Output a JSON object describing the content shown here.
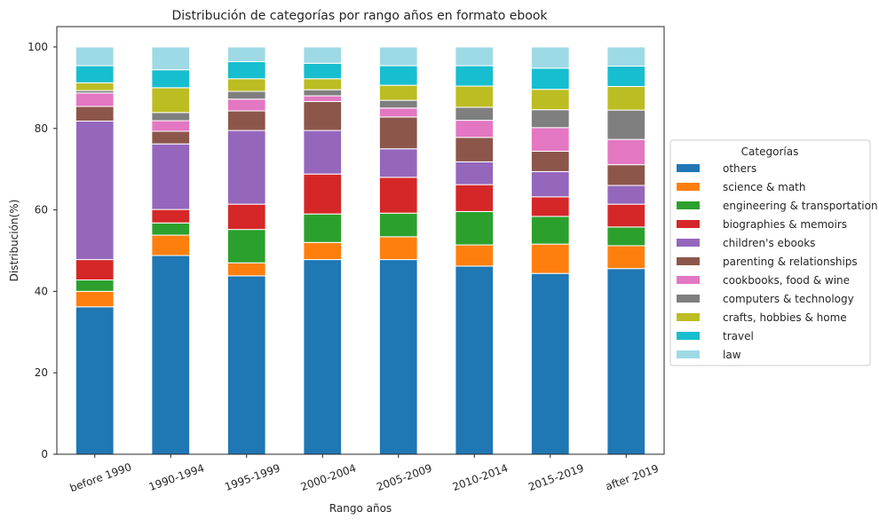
{
  "chart_data": {
    "type": "bar",
    "stacked": true,
    "title": "Distribución de categorías por rango años en formato ebook",
    "xlabel": "Rango años",
    "ylabel": "Distribución(%)",
    "ylim": [
      0,
      105
    ],
    "yticks": [
      0,
      20,
      40,
      60,
      80,
      100
    ],
    "grid": false,
    "legend_title": "Categorías",
    "legend_position": "center-right outside",
    "categories": [
      "before 1990",
      "1990-1994",
      "1995-1999",
      "2000-2004",
      "2005-2009",
      "2010-2014",
      "2015-2019",
      "after 2019"
    ],
    "series": [
      {
        "name": "others",
        "color": "#1f77b4",
        "values": [
          36.2,
          48.8,
          43.8,
          47.8,
          47.8,
          46.2,
          44.4,
          45.6
        ]
      },
      {
        "name": "science & math",
        "color": "#ff7f0e",
        "values": [
          3.8,
          5.0,
          3.2,
          4.2,
          5.6,
          5.2,
          7.2,
          5.6
        ]
      },
      {
        "name": "engineering & transportation",
        "color": "#2ca02c",
        "values": [
          2.8,
          3.0,
          8.2,
          7.0,
          5.8,
          8.2,
          6.8,
          4.6
        ]
      },
      {
        "name": "biographies & memoirs",
        "color": "#d62728",
        "values": [
          5.0,
          3.3,
          6.2,
          9.8,
          8.8,
          6.6,
          4.8,
          5.6
        ]
      },
      {
        "name": "children's ebooks",
        "color": "#9467bd",
        "values": [
          34.0,
          16.1,
          18.1,
          10.7,
          7.0,
          5.6,
          6.2,
          4.6
        ]
      },
      {
        "name": "parenting & relationships",
        "color": "#8c564b",
        "values": [
          3.6,
          3.1,
          4.8,
          7.1,
          7.8,
          6.0,
          5.0,
          5.1
        ]
      },
      {
        "name": "cookbooks, food & wine",
        "color": "#e377c2",
        "values": [
          3.3,
          2.6,
          2.9,
          1.4,
          2.2,
          4.2,
          5.8,
          6.2
        ]
      },
      {
        "name": "computers & technology",
        "color": "#7f7f7f",
        "values": [
          0.6,
          2.0,
          1.9,
          1.5,
          1.9,
          3.2,
          4.4,
          7.2
        ]
      },
      {
        "name": "crafts, hobbies & home",
        "color": "#bcbd22",
        "values": [
          1.9,
          6.1,
          3.1,
          2.7,
          3.7,
          5.2,
          5.0,
          5.8
        ]
      },
      {
        "name": "travel",
        "color": "#17becf",
        "values": [
          4.2,
          4.4,
          4.2,
          3.8,
          4.8,
          5.0,
          5.2,
          5.0
        ]
      },
      {
        "name": "law",
        "color": "#9edae5",
        "values": [
          4.6,
          5.6,
          3.6,
          4.0,
          4.6,
          4.6,
          5.2,
          4.7
        ]
      }
    ]
  }
}
